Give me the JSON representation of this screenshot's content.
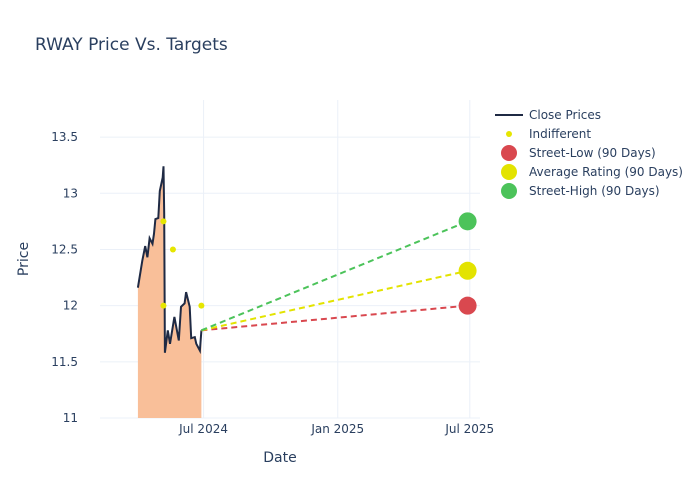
{
  "chart_data": {
    "type": "line",
    "title": "RWAY Price Vs. Targets",
    "xlabel": "Date",
    "ylabel": "Price",
    "ylim": [
      11,
      13.83
    ],
    "xlim": [
      "2024-02-10",
      "2025-07-15"
    ],
    "grid": true,
    "legend_position": "right",
    "x_ticks": [
      {
        "date": "2024-07-01",
        "label": "Jul 2024"
      },
      {
        "date": "2025-01-01",
        "label": "Jan 2025"
      },
      {
        "date": "2025-07-01",
        "label": "Jul 2025"
      }
    ],
    "y_ticks": [
      11,
      11.5,
      12,
      12.5,
      13,
      13.5
    ],
    "y_tick_labels": [
      "11",
      "11.5",
      "12",
      "12.5",
      "13",
      "13.5"
    ],
    "close_prices": {
      "name": "Close Prices",
      "color": "#1f2a44",
      "fill": "#f9bf99",
      "x": [
        "2024-04-02",
        "2024-04-08",
        "2024-04-12",
        "2024-04-15",
        "2024-04-18",
        "2024-04-22",
        "2024-04-24",
        "2024-04-26",
        "2024-04-30",
        "2024-05-02",
        "2024-05-06",
        "2024-05-07",
        "2024-05-08",
        "2024-05-09",
        "2024-05-13",
        "2024-05-16",
        "2024-05-22",
        "2024-05-28",
        "2024-05-31",
        "2024-06-05",
        "2024-06-07",
        "2024-06-12",
        "2024-06-14",
        "2024-06-19",
        "2024-06-21",
        "2024-06-26",
        "2024-06-28"
      ],
      "y": [
        12.16,
        12.4,
        12.53,
        12.43,
        12.6,
        12.55,
        12.64,
        12.77,
        12.78,
        13.02,
        13.14,
        13.24,
        12.82,
        11.58,
        11.78,
        11.66,
        11.9,
        11.69,
        11.99,
        12.02,
        12.12,
        11.99,
        11.71,
        11.72,
        11.66,
        11.6,
        11.78
      ]
    },
    "indifferent": {
      "name": "Indifferent",
      "color": "#e6e600",
      "x": [
        "2024-05-07",
        "2024-05-07",
        "2024-05-20",
        "2024-06-28"
      ],
      "y": [
        12.75,
        12.0,
        12.5,
        12.0
      ]
    },
    "targets": [
      {
        "name": "Street-Low (90 Days)",
        "color": "#d9484f",
        "from": [
          "2024-06-28",
          11.78
        ],
        "to": [
          "2025-06-28",
          12.0
        ]
      },
      {
        "name": "Average Rating (90 Days)",
        "color": "#e3e300",
        "from": [
          "2024-06-28",
          11.78
        ],
        "to": [
          "2025-06-28",
          12.31
        ]
      },
      {
        "name": "Street-High (90 Days)",
        "color": "#4cc35a",
        "from": [
          "2024-06-28",
          11.78
        ],
        "to": [
          "2025-06-28",
          12.75
        ]
      }
    ]
  }
}
